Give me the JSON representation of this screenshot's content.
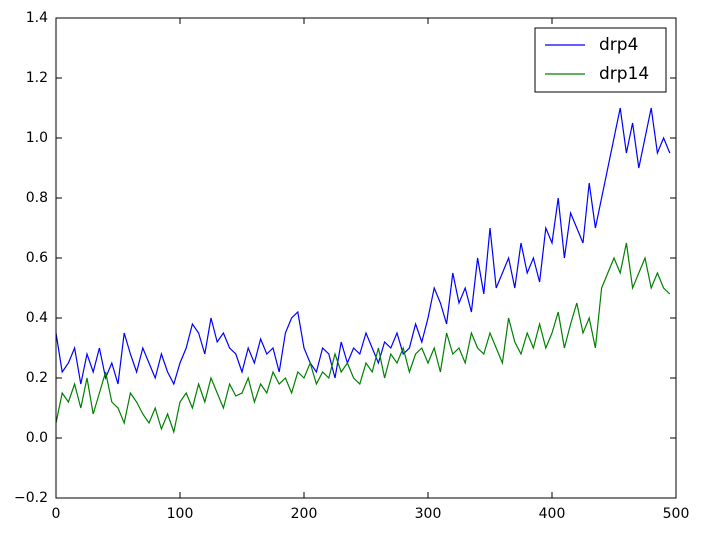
{
  "chart_data": {
    "type": "line",
    "x": [
      0,
      5,
      10,
      15,
      20,
      25,
      30,
      35,
      40,
      45,
      50,
      55,
      60,
      65,
      70,
      75,
      80,
      85,
      90,
      95,
      100,
      105,
      110,
      115,
      120,
      125,
      130,
      135,
      140,
      145,
      150,
      155,
      160,
      165,
      170,
      175,
      180,
      185,
      190,
      195,
      200,
      205,
      210,
      215,
      220,
      225,
      230,
      235,
      240,
      245,
      250,
      255,
      260,
      265,
      270,
      275,
      280,
      285,
      290,
      295,
      300,
      305,
      310,
      315,
      320,
      325,
      330,
      335,
      340,
      345,
      350,
      355,
      360,
      365,
      370,
      375,
      380,
      385,
      390,
      395,
      400,
      405,
      410,
      415,
      420,
      425,
      430,
      435,
      440,
      445,
      450,
      455,
      460,
      465,
      470,
      475,
      480,
      485,
      490,
      495
    ],
    "series": [
      {
        "name": "drp4",
        "color": "#0000ff",
        "values": [
          0.35,
          0.22,
          0.25,
          0.3,
          0.18,
          0.28,
          0.22,
          0.3,
          0.2,
          0.25,
          0.18,
          0.35,
          0.28,
          0.22,
          0.3,
          0.25,
          0.2,
          0.28,
          0.22,
          0.18,
          0.25,
          0.3,
          0.38,
          0.35,
          0.28,
          0.4,
          0.32,
          0.35,
          0.3,
          0.28,
          0.22,
          0.3,
          0.25,
          0.33,
          0.28,
          0.3,
          0.22,
          0.35,
          0.4,
          0.42,
          0.3,
          0.25,
          0.22,
          0.3,
          0.28,
          0.2,
          0.32,
          0.25,
          0.3,
          0.28,
          0.35,
          0.3,
          0.25,
          0.32,
          0.3,
          0.35,
          0.28,
          0.3,
          0.38,
          0.32,
          0.4,
          0.5,
          0.45,
          0.38,
          0.55,
          0.45,
          0.5,
          0.42,
          0.6,
          0.48,
          0.7,
          0.5,
          0.55,
          0.6,
          0.5,
          0.65,
          0.55,
          0.6,
          0.52,
          0.7,
          0.65,
          0.8,
          0.6,
          0.75,
          0.7,
          0.65,
          0.85,
          0.7,
          0.8,
          0.9,
          1.0,
          1.1,
          0.95,
          1.05,
          0.9,
          1.0,
          1.1,
          0.95,
          1.0,
          0.95
        ]
      },
      {
        "name": "drp14",
        "color": "#008000",
        "values": [
          0.05,
          0.15,
          0.12,
          0.18,
          0.1,
          0.2,
          0.08,
          0.15,
          0.22,
          0.12,
          0.1,
          0.05,
          0.15,
          0.12,
          0.08,
          0.05,
          0.1,
          0.03,
          0.08,
          0.02,
          0.12,
          0.15,
          0.1,
          0.18,
          0.12,
          0.2,
          0.15,
          0.1,
          0.18,
          0.14,
          0.15,
          0.2,
          0.12,
          0.18,
          0.15,
          0.22,
          0.18,
          0.2,
          0.15,
          0.22,
          0.2,
          0.25,
          0.18,
          0.22,
          0.2,
          0.28,
          0.22,
          0.25,
          0.2,
          0.18,
          0.25,
          0.22,
          0.3,
          0.2,
          0.28,
          0.25,
          0.3,
          0.22,
          0.28,
          0.3,
          0.25,
          0.3,
          0.22,
          0.35,
          0.28,
          0.3,
          0.25,
          0.35,
          0.3,
          0.28,
          0.35,
          0.3,
          0.25,
          0.4,
          0.32,
          0.28,
          0.35,
          0.3,
          0.38,
          0.3,
          0.35,
          0.42,
          0.3,
          0.38,
          0.45,
          0.35,
          0.4,
          0.3,
          0.5,
          0.55,
          0.6,
          0.55,
          0.65,
          0.5,
          0.55,
          0.6,
          0.5,
          0.55,
          0.5,
          0.48
        ]
      }
    ],
    "xlim": [
      0,
      500
    ],
    "xticks": [
      0,
      100,
      200,
      300,
      400,
      500
    ],
    "ylim": [
      -0.2,
      1.4
    ],
    "yticks": [
      {
        "value": -0.2,
        "label": "−0.2"
      },
      {
        "value": 0,
        "label": "0.0"
      },
      0.2,
      0.4,
      0.6,
      0.8,
      {
        "value": 1,
        "label": "1.0"
      },
      1.2,
      1.4
    ],
    "legend": "upper right"
  }
}
